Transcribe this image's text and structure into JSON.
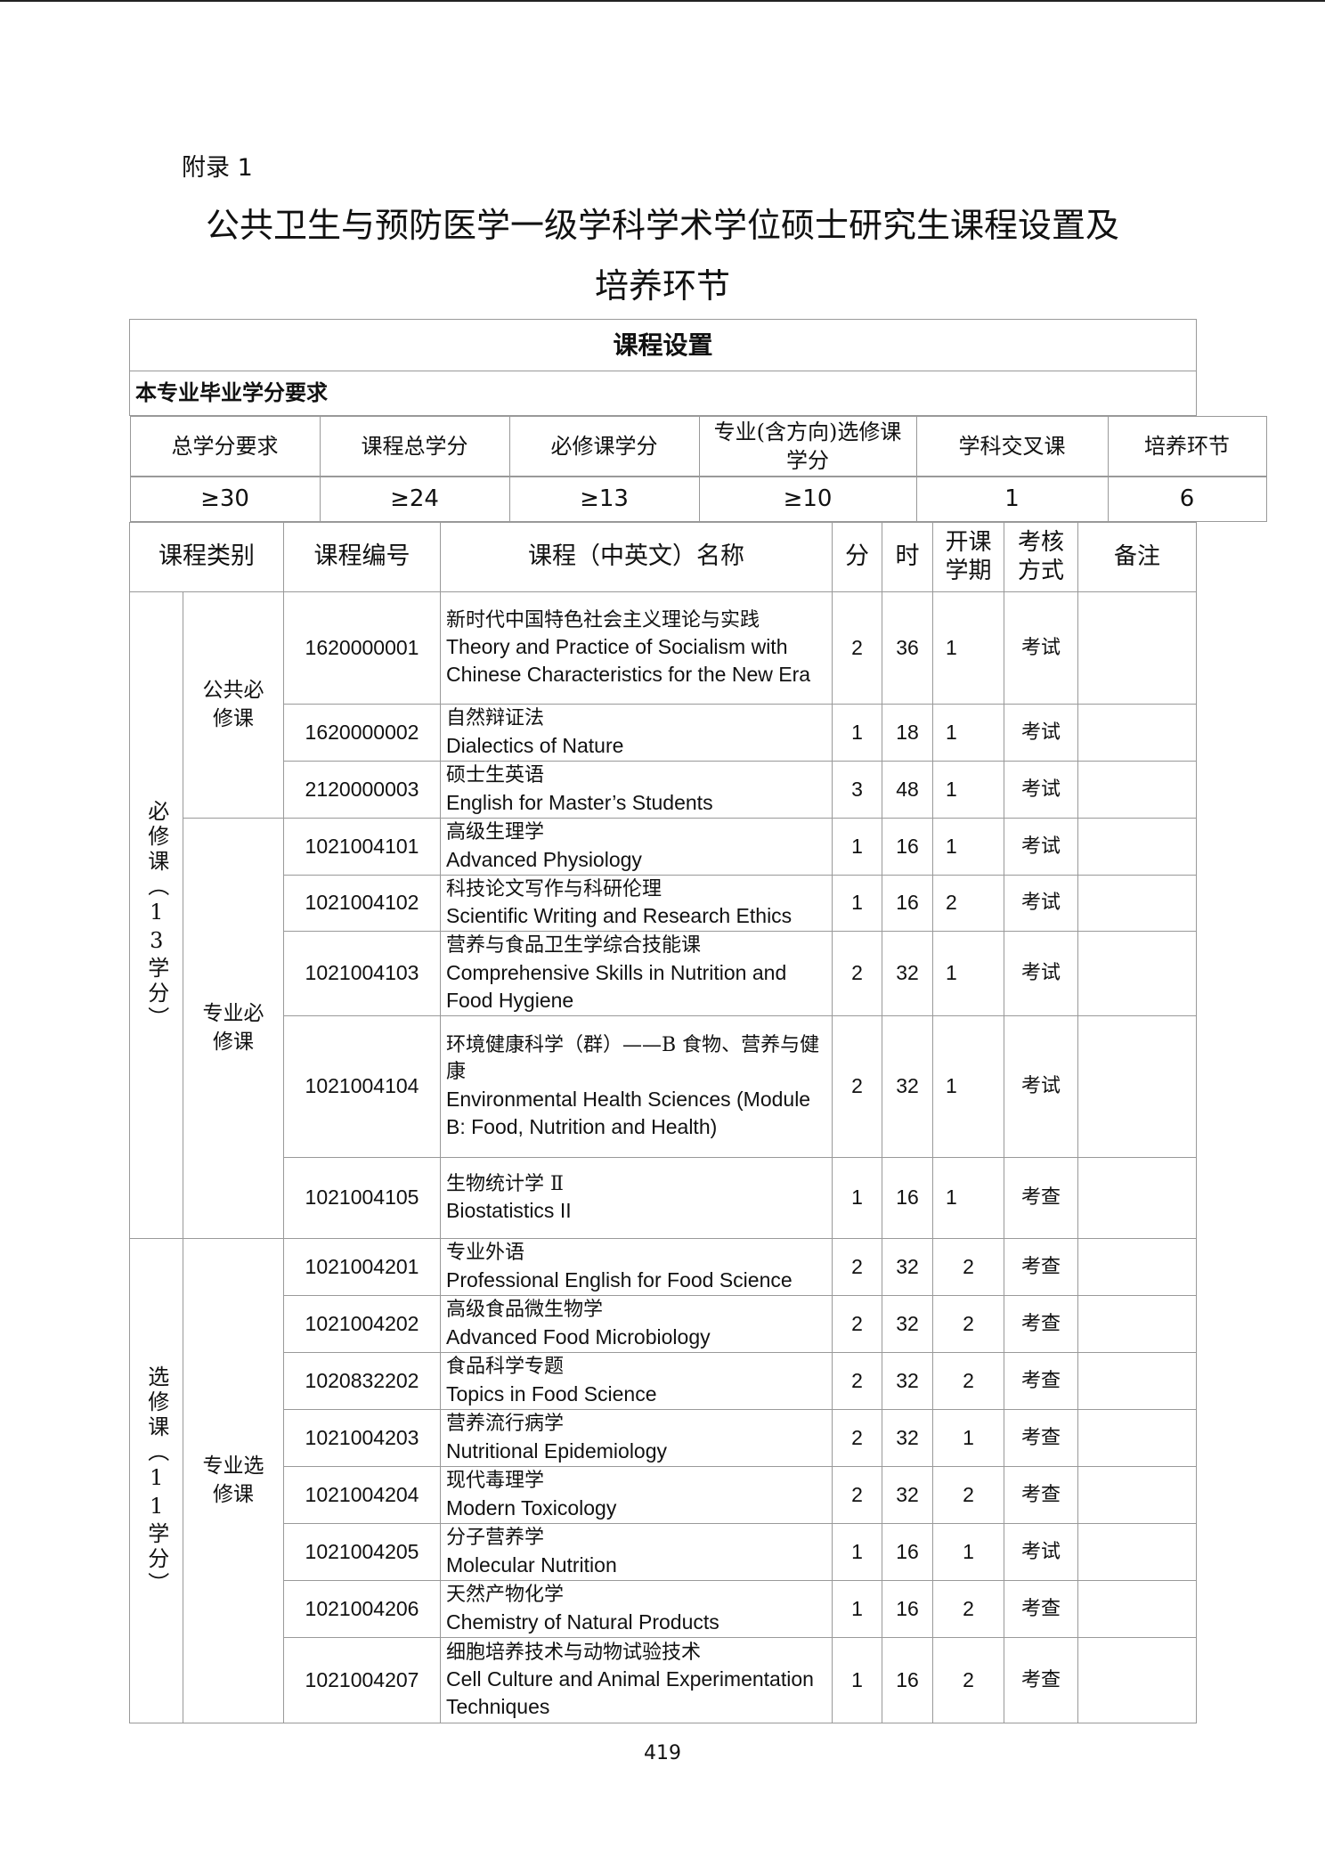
{
  "appendix_label": "附录 1",
  "title_line1": "公共卫生与预防医学一级学科学术学位硕士研究生课程设置及",
  "title_line2": "培养环节",
  "table": {
    "section_title": "课程设置",
    "requirement_label": "本专业毕业学分要求",
    "requirement_headers": [
      "总学分要求",
      "课程总学分",
      "必修课学分",
      "专业(含方向)选修课学分",
      "学科交叉课",
      "培养环节"
    ],
    "requirement_values": [
      "≥30",
      "≥24",
      "≥13",
      "≥10",
      "1",
      "6"
    ],
    "course_headers": [
      "课程类别",
      "课程编号",
      "课程（中英文）名称",
      "分",
      "时",
      "开课学期",
      "考核方式",
      "备注"
    ],
    "groups": [
      {
        "label": "必修课（13学分）",
        "subgroups": [
          {
            "label": "公共必修课",
            "courses": [
              {
                "code": "1620000001",
                "cn": "新时代中国特色社会主义理论与实践",
                "en": "Theory and Practice of Socialism with Chinese Characteristics for the New Era",
                "credit": "2",
                "hours": "36",
                "term": "1",
                "exam": "考试"
              },
              {
                "code": "1620000002",
                "cn": "自然辩证法",
                "en": "Dialectics of Nature",
                "credit": "1",
                "hours": "18",
                "term": "1",
                "exam": "考试"
              },
              {
                "code": "2120000003",
                "cn": "硕士生英语",
                "en": "English for Master’s Students",
                "credit": "3",
                "hours": "48",
                "term": "1",
                "exam": "考试"
              }
            ]
          },
          {
            "label": "专业必修课",
            "courses": [
              {
                "code": "1021004101",
                "cn": "高级生理学",
                "en": "Advanced Physiology",
                "credit": "1",
                "hours": "16",
                "term": "1",
                "exam": "考试"
              },
              {
                "code": "1021004102",
                "cn": "科技论文写作与科研伦理",
                "en": "Scientific Writing and Research Ethics",
                "credit": "1",
                "hours": "16",
                "term": "2",
                "exam": "考试"
              },
              {
                "code": "1021004103",
                "cn": "营养与食品卫生学综合技能课",
                "en": "Comprehensive Skills in Nutrition and Food Hygiene",
                "credit": "2",
                "hours": "32",
                "term": "1",
                "exam": "考试"
              },
              {
                "code": "1021004104",
                "cn": "环境健康科学（群）——B 食物、营养与健康",
                "en": "Environmental Health Sciences (Module B: Food, Nutrition and Health)",
                "credit": "2",
                "hours": "32",
                "term": "1",
                "exam": "考试"
              },
              {
                "code": "1021004105",
                "cn": "生物统计学 Ⅱ",
                "en": "Biostatistics II",
                "credit": "1",
                "hours": "16",
                "term": "1",
                "exam": "考查"
              }
            ]
          }
        ]
      },
      {
        "label": "选修课（11学分）",
        "subgroups": [
          {
            "label": "专业选修课",
            "courses": [
              {
                "code": "1021004201",
                "cn": "专业外语",
                "en": "Professional English for Food Science",
                "credit": "2",
                "hours": "32",
                "term": "2",
                "exam": "考查"
              },
              {
                "code": "1021004202",
                "cn": "高级食品微生物学",
                "en": "Advanced Food Microbiology",
                "credit": "2",
                "hours": "32",
                "term": "2",
                "exam": "考查"
              },
              {
                "code": "1020832202",
                "cn": "食品科学专题",
                "en": "Topics in Food Science",
                "credit": "2",
                "hours": "32",
                "term": "2",
                "exam": "考查"
              },
              {
                "code": "1021004203",
                "cn": "营养流行病学",
                "en": "Nutritional Epidemiology",
                "credit": "2",
                "hours": "32",
                "term": "1",
                "exam": "考查"
              },
              {
                "code": "1021004204",
                "cn": "现代毒理学",
                "en": "Modern Toxicology",
                "credit": "2",
                "hours": "32",
                "term": "2",
                "exam": "考查"
              },
              {
                "code": "1021004205",
                "cn": "分子营养学",
                "en": "Molecular Nutrition",
                "credit": "1",
                "hours": "16",
                "term": "1",
                "exam": "考试"
              },
              {
                "code": "1021004206",
                "cn": "天然产物化学",
                "en": "Chemistry of Natural Products",
                "credit": "1",
                "hours": "16",
                "term": "2",
                "exam": "考查"
              },
              {
                "code": "1021004207",
                "cn": "细胞培养技术与动物试验技术",
                "en": "Cell Culture and Animal Experimentation Techniques",
                "credit": "1",
                "hours": "16",
                "term": "2",
                "exam": "考查"
              }
            ]
          }
        ]
      }
    ]
  },
  "page_number": "419"
}
